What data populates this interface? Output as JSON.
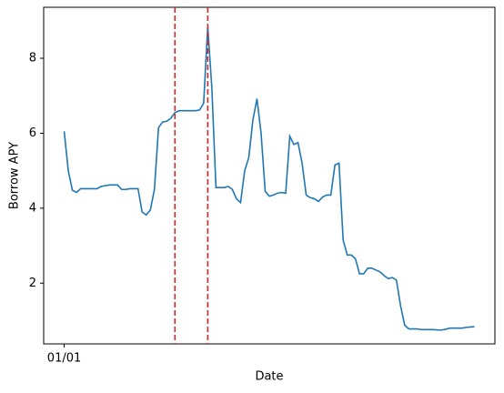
{
  "chart_data": {
    "type": "line",
    "xlabel": "Date",
    "ylabel": "Borrow APY",
    "x": [
      0,
      1,
      2,
      3,
      4,
      5,
      6,
      7,
      8,
      9,
      10,
      11,
      12,
      13,
      14,
      15,
      16,
      17,
      18,
      19,
      20,
      21,
      22,
      23,
      24,
      25,
      26,
      27,
      28,
      29,
      30,
      31,
      32,
      33,
      34,
      35,
      36,
      37,
      38,
      39,
      40,
      41,
      42,
      43,
      44,
      45,
      46,
      47,
      48,
      49,
      50,
      51,
      52,
      53,
      54,
      55,
      56,
      57,
      58,
      59,
      60,
      61,
      62,
      63,
      64,
      65,
      66,
      67,
      68,
      69,
      70,
      71,
      72,
      73,
      74,
      75,
      76,
      77,
      78,
      79,
      80,
      81,
      82,
      83,
      84,
      85,
      86,
      87,
      88,
      89,
      90,
      91,
      92,
      93,
      94,
      95,
      96,
      97,
      98,
      99,
      100
    ],
    "series": [
      {
        "color": "#1f77b4",
        "values": [
          6.05,
          5.0,
          4.48,
          4.42,
          4.52,
          4.52,
          4.52,
          4.52,
          4.52,
          4.58,
          4.6,
          4.62,
          4.62,
          4.62,
          4.5,
          4.5,
          4.52,
          4.52,
          4.52,
          3.9,
          3.82,
          3.95,
          4.5,
          6.15,
          6.3,
          6.32,
          6.4,
          6.55,
          6.6,
          6.6,
          6.6,
          6.6,
          6.6,
          6.62,
          6.8,
          8.85,
          7.2,
          4.55,
          4.55,
          4.55,
          4.58,
          4.5,
          4.25,
          4.15,
          5.0,
          5.35,
          6.35,
          6.92,
          6.0,
          4.45,
          4.32,
          4.35,
          4.4,
          4.42,
          4.4,
          5.92,
          5.7,
          5.75,
          5.2,
          4.35,
          4.28,
          4.25,
          4.18,
          4.3,
          4.35,
          4.35,
          5.15,
          5.2,
          3.15,
          2.75,
          2.75,
          2.65,
          2.25,
          2.25,
          2.4,
          2.4,
          2.35,
          2.3,
          2.2,
          2.12,
          2.15,
          2.08,
          1.4,
          0.88,
          0.78,
          0.78,
          0.78,
          0.76,
          0.76,
          0.76,
          0.76,
          0.75,
          0.75,
          0.77,
          0.8,
          0.8,
          0.8,
          0.8,
          0.82,
          0.83,
          0.84
        ]
      }
    ],
    "vlines": [
      27,
      35
    ],
    "vline_color": "#d62728",
    "vline_style": "dashed",
    "xlim": [
      -5,
      105
    ],
    "xticks": [
      {
        "value": 0,
        "label": "01/01"
      }
    ],
    "ylim": [
      0.38,
      9.36
    ],
    "yticks": [
      2,
      4,
      6,
      8
    ]
  }
}
